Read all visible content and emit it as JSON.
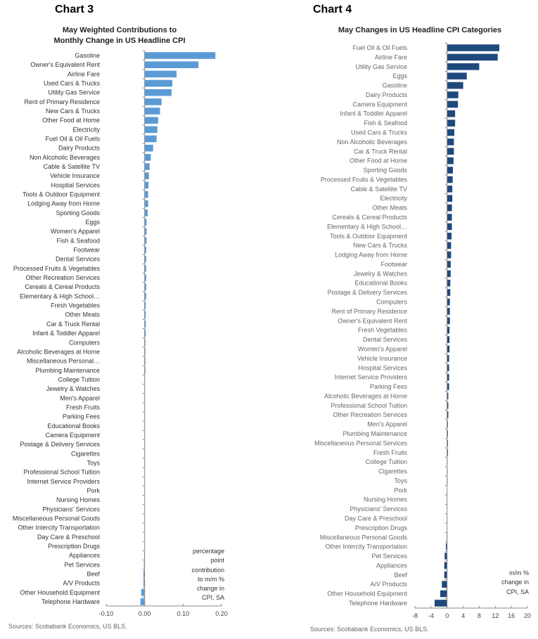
{
  "chart_data": [
    {
      "type": "bar",
      "orientation": "horizontal",
      "chart_label": "Chart 3",
      "title": "May Weighted Contributions to",
      "title_line2": "Monthly Change in US Headline CPI",
      "unit_label": [
        "percentage",
        "point",
        "contribution",
        "to m/m %",
        "change in",
        "CPI, SA"
      ],
      "xlim": [
        -0.1,
        0.2
      ],
      "xticks": [
        "-0.10",
        "0.00",
        "0.10",
        "0.20"
      ],
      "xtick_values": [
        -0.1,
        0.0,
        0.1,
        0.2
      ],
      "source": "Sources: Scotiabank Economics, US BLS.",
      "color": "#5b9bd5",
      "categories": [
        "Gasoline",
        "Owner's Equivalent Rent",
        "Airline Fare",
        "Used Cars & Trucks",
        "Utility Gas Service",
        "Rent of Primary Residence",
        "New Cars & Trucks",
        "Other Food at Home",
        "Electricity",
        "Fuel Oil & Oil Fuels",
        "Dairy Products",
        "Non Alcoholic Beverages",
        "Cable & Satellite TV",
        "Vehicle Insurance",
        "Hospital Services",
        "Tools & Outdoor Equipment",
        "Lodging Away from Home",
        "Sporting Goods",
        "Eggs",
        "Women's Apparel",
        "Fish & Seafood",
        "Footwear",
        "Dental Services",
        "Processed Fruits & Vegetables",
        "Other Recreation Services",
        "Cereals & Cereal Products",
        "Elementary & High School…",
        "Fresh Vegetables",
        "Other Meats",
        "Car & Truck Rental",
        "Infant & Toddler Apparel",
        "Computers",
        "Alcoholic Beverages at Home",
        "Miscellaneous Personal…",
        "Plumbing Maintenance",
        "College Tuition",
        "Jewelry & Watches",
        "Men's Apparel",
        "Fresh Fruits",
        "Parking Fees",
        "Educational Books",
        "Camera Equipment",
        "Postage & Delivery Services",
        "Cigarettes",
        "Toys",
        "Professional School Tuition",
        "Internet Service Providers",
        "Pork",
        "Nursing Homes",
        "Physicians' Services",
        "Miscellaneous Personal Goods",
        "Other Intercity Transportation",
        "Day Care & Preschool",
        "Prescription Drugs",
        "Appliances",
        "Pet Services",
        "Beef",
        "A/V Products",
        "Other Household Equipment",
        "Telephone Hardware"
      ],
      "values": [
        0.184,
        0.14,
        0.083,
        0.072,
        0.07,
        0.044,
        0.04,
        0.035,
        0.033,
        0.031,
        0.022,
        0.016,
        0.013,
        0.011,
        0.01,
        0.009,
        0.009,
        0.008,
        0.005,
        0.005,
        0.005,
        0.004,
        0.004,
        0.004,
        0.004,
        0.004,
        0.004,
        0.003,
        0.003,
        0.003,
        0.003,
        0.002,
        0.002,
        0.002,
        0.002,
        0.001,
        0.001,
        0.001,
        0.001,
        0.001,
        0.001,
        0.001,
        0.001,
        0.001,
        0.001,
        0.0005,
        0.0005,
        0.0,
        0.0,
        0.0,
        0.0,
        0.0,
        0.0,
        0.0,
        -0.001,
        -0.002,
        -0.003,
        -0.003,
        -0.009,
        -0.011
      ]
    },
    {
      "type": "bar",
      "orientation": "horizontal",
      "chart_label": "Chart 4",
      "title": "May Changes in US Headline CPI Categories",
      "unit_label": [
        "m/m %",
        "change in",
        "CPI, SA"
      ],
      "xlim": [
        -8,
        20
      ],
      "xticks": [
        "-8",
        "-4",
        "0",
        "4",
        "8",
        "12",
        "16",
        "20"
      ],
      "xtick_values": [
        -8,
        -4,
        0,
        4,
        8,
        12,
        16,
        20
      ],
      "source": "Sources: Scotiabank Economics, US BLS.",
      "color": "#1f497d",
      "categories": [
        "Fuel Oil & Oil Fuels",
        "Airline Fare",
        "Utility Gas Service",
        "Eggs",
        "Gasoline",
        "Dairy Products",
        "Camera Equipment",
        "Infant & Toddler Apparel",
        "Fish & Seafood",
        "Used Cars & Trucks",
        "Non Alcoholic Beverages",
        "Car & Truck Rental",
        "Other Food at Home",
        "Sporting Goods",
        "Processed Fruits & Vegetables",
        "Cable & Satellite TV",
        "Electricity",
        "Other Meats",
        "Cereals & Cereal Products",
        "Elementary & High School…",
        "Tools & Outdoor Equipment",
        "New Cars & Trucks",
        "Lodging Away from Home",
        "Footwear",
        "Jewelry & Watches",
        "Educational Books",
        "Postage & Delivery Services",
        "Computers",
        "Rent of Primary Residence",
        "Owner's Equivalent Rent",
        "Fresh Vegetables",
        "Dental Services",
        "Women's Apparel",
        "Vehicle Insurance",
        "Hospital Services",
        "Internet Service Providers",
        "Parking Fees",
        "Alcoholic Beverages at Home",
        "Professional School Tuition",
        "Other Recreation Services",
        "Men's Apparel",
        "Plumbing Maintenance",
        "Miscellaneous Personal Services",
        "Fresh Fruits",
        "College Tuition",
        "Cigarettes",
        "Toys",
        "Pork",
        "Nursing Homes",
        "Physicians' Services",
        "Day Care & Preschool",
        "Prescription Drugs",
        "Miscellaneous Personal Goods",
        "Other Intercity Transportation",
        "Pet Services",
        "Appliances",
        "Beef",
        "A/V Products",
        "Other Household Equipment",
        "Telephone Hardware"
      ],
      "values": [
        13.0,
        12.6,
        8.0,
        4.9,
        4.0,
        2.8,
        2.7,
        2.0,
        2.0,
        1.8,
        1.7,
        1.7,
        1.6,
        1.45,
        1.4,
        1.3,
        1.3,
        1.2,
        1.2,
        1.2,
        1.1,
        1.0,
        1.0,
        0.9,
        0.9,
        0.8,
        0.8,
        0.7,
        0.7,
        0.7,
        0.6,
        0.6,
        0.6,
        0.5,
        0.5,
        0.5,
        0.5,
        0.3,
        0.3,
        0.3,
        0.2,
        0.2,
        0.2,
        0.2,
        0.1,
        0.1,
        0.1,
        0.0,
        0.0,
        0.0,
        0.0,
        0.0,
        -0.1,
        -0.3,
        -0.6,
        -0.7,
        -0.7,
        -1.3,
        -1.7,
        -3.1
      ]
    }
  ]
}
